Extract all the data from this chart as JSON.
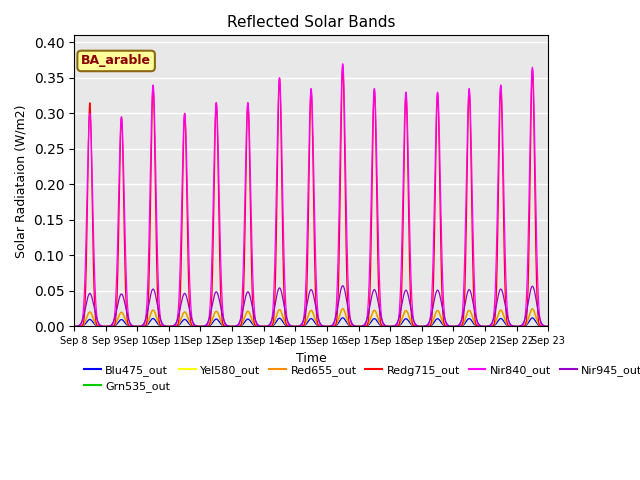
{
  "title": "Reflected Solar Bands",
  "xlabel": "Time",
  "ylabel": "Solar Radiataion (W/m2)",
  "ylim": [
    0.0,
    0.41
  ],
  "yticks": [
    0.0,
    0.05,
    0.1,
    0.15,
    0.2,
    0.25,
    0.3,
    0.35,
    0.4
  ],
  "x_tick_labels": [
    "Sep 8",
    "Sep 9",
    "Sep 10",
    "Sep 11",
    "Sep 12",
    "Sep 13",
    "Sep 14",
    "Sep 15",
    "Sep 16",
    "Sep 17",
    "Sep 18",
    "Sep 19",
    "Sep 20",
    "Sep 21",
    "Sep 22",
    "Sep 23"
  ],
  "annotation_text": "BA_arable",
  "annotation_color": "#8B0000",
  "annotation_bg": "#FFFF99",
  "series": [
    {
      "name": "Blu475_out",
      "color": "#0000FF",
      "scale": 0.033,
      "sigma": 0.1
    },
    {
      "name": "Grn535_out",
      "color": "#00CC00",
      "scale": 0.067,
      "sigma": 0.1
    },
    {
      "name": "Yel580_out",
      "color": "#FFFF00",
      "scale": 0.065,
      "sigma": 0.1
    },
    {
      "name": "Red655_out",
      "color": "#FF8C00",
      "scale": 0.068,
      "sigma": 0.1
    },
    {
      "name": "Redg715_out",
      "color": "#FF0000",
      "scale": 1.0,
      "sigma": 0.07
    },
    {
      "name": "Nir840_out",
      "color": "#FF00FF",
      "scale": 1.0,
      "sigma": 0.09
    },
    {
      "name": "Nir945_out",
      "color": "#9900CC",
      "scale": 0.155,
      "sigma": 0.13
    }
  ],
  "nir840_peaks": [
    0.3,
    0.295,
    0.34,
    0.3,
    0.315,
    0.315,
    0.35,
    0.335,
    0.37,
    0.335,
    0.33,
    0.33,
    0.335,
    0.34,
    0.365
  ],
  "redg715_peaks": [
    0.315,
    0.295,
    0.338,
    0.3,
    0.315,
    0.315,
    0.35,
    0.333,
    0.367,
    0.334,
    0.328,
    0.328,
    0.332,
    0.338,
    0.362
  ],
  "background_color": "#E8E8E8",
  "grid_color": "#FFFFFF"
}
